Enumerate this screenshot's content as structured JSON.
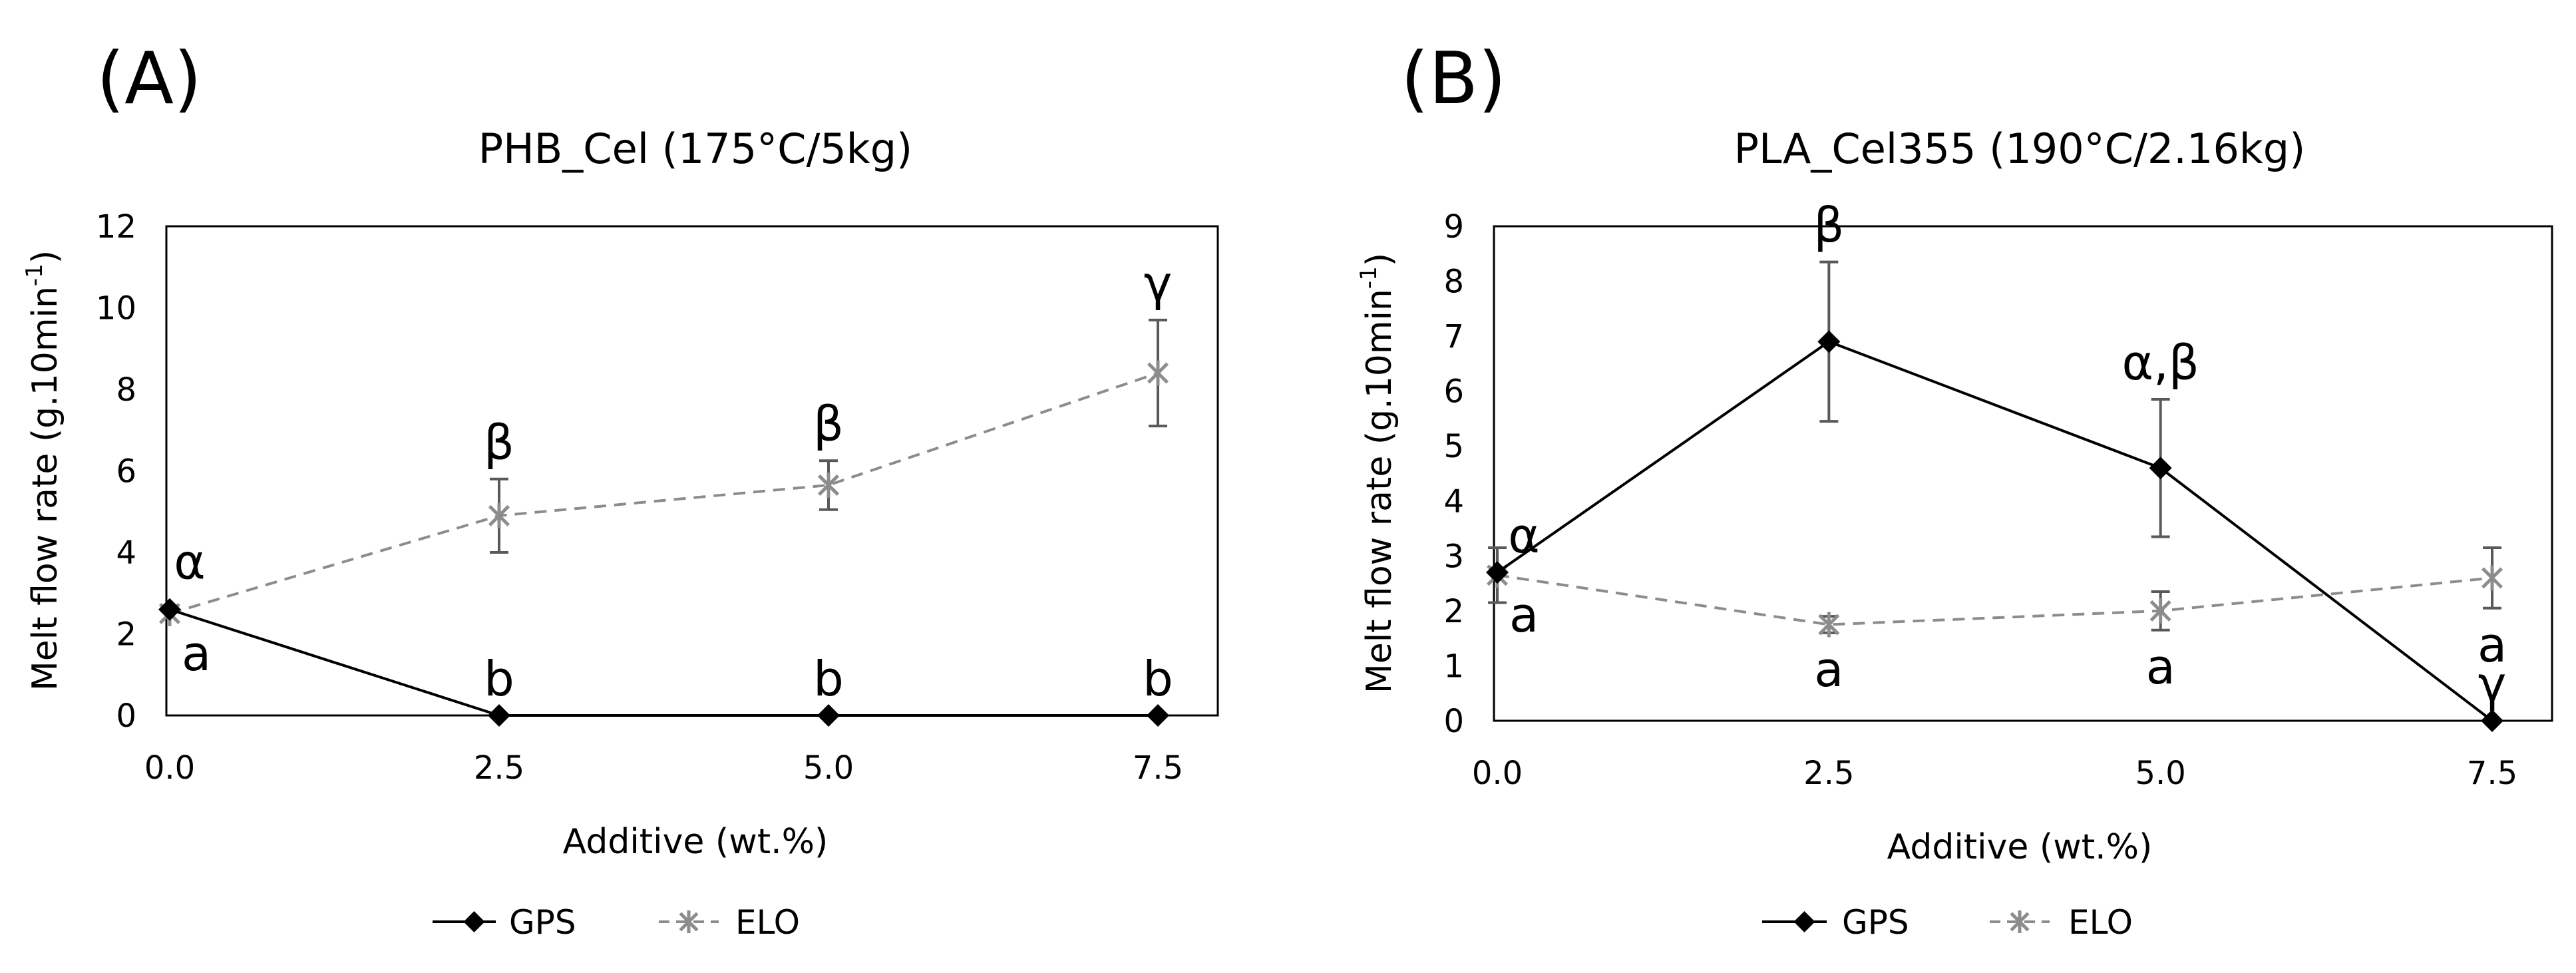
{
  "chart_data": [
    {
      "type": "line",
      "panel_label": "(A)",
      "title": "PHB_Cel (175°C/5kg)",
      "xlabel": "Additive (wt.%)",
      "ylabel": "Melt flow rate (g.10min-1)",
      "ylabel_main": "Melt flow rate (g.10min",
      "ylabel_sup": "-1",
      "ylabel_close": ")",
      "ylim": [
        0,
        12
      ],
      "y_ticks": [
        "0",
        "2",
        "4",
        "6",
        "8",
        "10",
        "12"
      ],
      "x": [
        0.0,
        2.5,
        5.0,
        7.5
      ],
      "x_ticks": [
        "0.0",
        "2.5",
        "5.0",
        "7.5"
      ],
      "legend": [
        "GPS",
        "ELO"
      ],
      "legend_position": "bottom",
      "series": [
        {
          "name": "GPS",
          "color": "#000000",
          "style": "solid",
          "marker": "diamond",
          "values": [
            2.6,
            0.0,
            0.0,
            0.0
          ],
          "errors": [
            0,
            0,
            0,
            0
          ],
          "labels": [
            "",
            "b",
            "b",
            "b"
          ],
          "label_pos": [
            "below",
            "above",
            "above",
            "above"
          ]
        },
        {
          "name": "ELO",
          "color": "#8c8c8c",
          "style": "dashed",
          "marker": "star",
          "values": [
            2.5,
            4.9,
            5.65,
            8.4
          ],
          "errors": [
            0,
            0.9,
            0.6,
            1.3
          ],
          "labels": [
            "a",
            "β",
            "β",
            "γ"
          ],
          "label_pos": [
            "below",
            "above",
            "above",
            "above"
          ]
        }
      ],
      "annotations": [
        {
          "text": "α",
          "x": 0.0,
          "y": 3.6
        }
      ]
    },
    {
      "type": "line",
      "panel_label": "(B)",
      "title": "PLA_Cel355 (190°C/2.16kg)",
      "xlabel": "Additive (wt.%)",
      "ylabel": "Melt flow rate (g.10min-1)",
      "ylabel_main": "Melt flow rate (g.10min",
      "ylabel_sup": "-1",
      "ylabel_close": ")",
      "ylim": [
        0,
        9
      ],
      "y_ticks": [
        "0",
        "1",
        "2",
        "3",
        "4",
        "5",
        "6",
        "7",
        "8",
        "9"
      ],
      "x": [
        0.0,
        2.5,
        5.0,
        7.5
      ],
      "x_ticks": [
        "0.0",
        "2.5",
        "5.0",
        "7.5"
      ],
      "legend": [
        "GPS",
        "ELO"
      ],
      "legend_position": "bottom",
      "series": [
        {
          "name": "GPS",
          "color": "#000000",
          "style": "solid",
          "marker": "diamond",
          "values": [
            2.7,
            6.9,
            4.6,
            0.0
          ],
          "errors": [
            0,
            1.45,
            1.25,
            0
          ],
          "labels": [
            "α",
            "β",
            "α,β",
            "γ"
          ],
          "label_pos": [
            "above",
            "above",
            "above",
            "above"
          ]
        },
        {
          "name": "ELO",
          "color": "#8c8c8c",
          "style": "dashed",
          "marker": "star",
          "values": [
            2.65,
            1.75,
            2.0,
            2.6
          ],
          "errors": [
            0.5,
            0.15,
            0.35,
            0.55
          ],
          "labels": [
            "a",
            "a",
            "a",
            "a"
          ],
          "label_pos": [
            "below",
            "below",
            "below",
            "below"
          ]
        }
      ],
      "annotations": []
    }
  ]
}
